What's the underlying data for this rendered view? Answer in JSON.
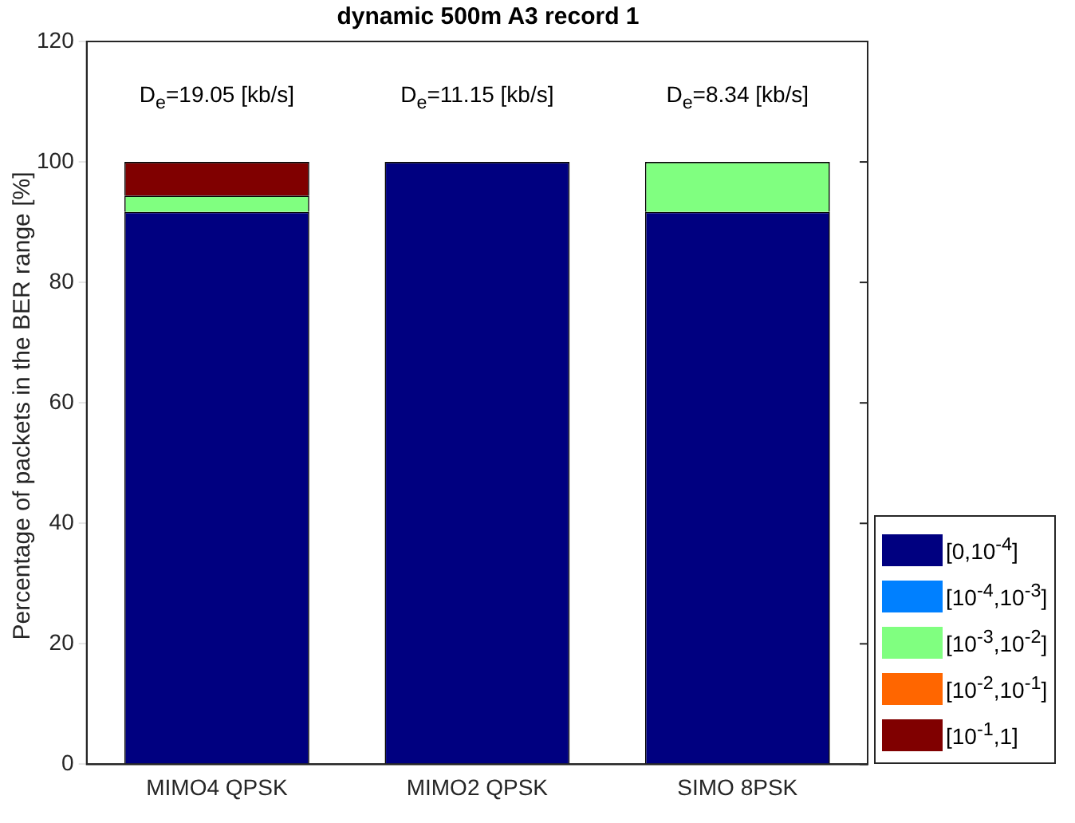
{
  "chart_data": {
    "type": "bar",
    "title": "dynamic 500m A3 record 1",
    "ylabel": "Percentage of packets in the BER range [%]",
    "categories": [
      "MIMO4 QPSK",
      "MIMO2 QPSK",
      "SIMO 8PSK"
    ],
    "stacked": true,
    "series": [
      {
        "name": "[0,10$^{-4}$]",
        "color": "#000080",
        "values": [
          91.7,
          100,
          91.7
        ]
      },
      {
        "name": "[10$^{-4}$,10$^{-3}$]",
        "color": "#0080ff",
        "values": [
          0,
          0,
          0
        ]
      },
      {
        "name": "[10$^{-3}$,10$^{-2}$]",
        "color": "#80ff80",
        "values": [
          2.7,
          0,
          8.3
        ]
      },
      {
        "name": "[10$^{-2}$,10$^{-1}$]",
        "color": "#ff6600",
        "values": [
          0,
          0,
          0
        ]
      },
      {
        "name": "[10$^{-1}$,1]",
        "color": "#800000",
        "values": [
          5.6,
          0,
          0
        ]
      }
    ],
    "ylim": [
      0,
      120
    ],
    "yticks": [
      0,
      20,
      40,
      60,
      80,
      100,
      120
    ],
    "annotations": [
      "D$_{e}$=19.05 [kb/s]",
      "D$_{e}$=11.15 [kb/s]",
      "D$_{e}$=8.34 [kb/s]"
    ],
    "legend": "bottom right",
    "grid": false
  }
}
